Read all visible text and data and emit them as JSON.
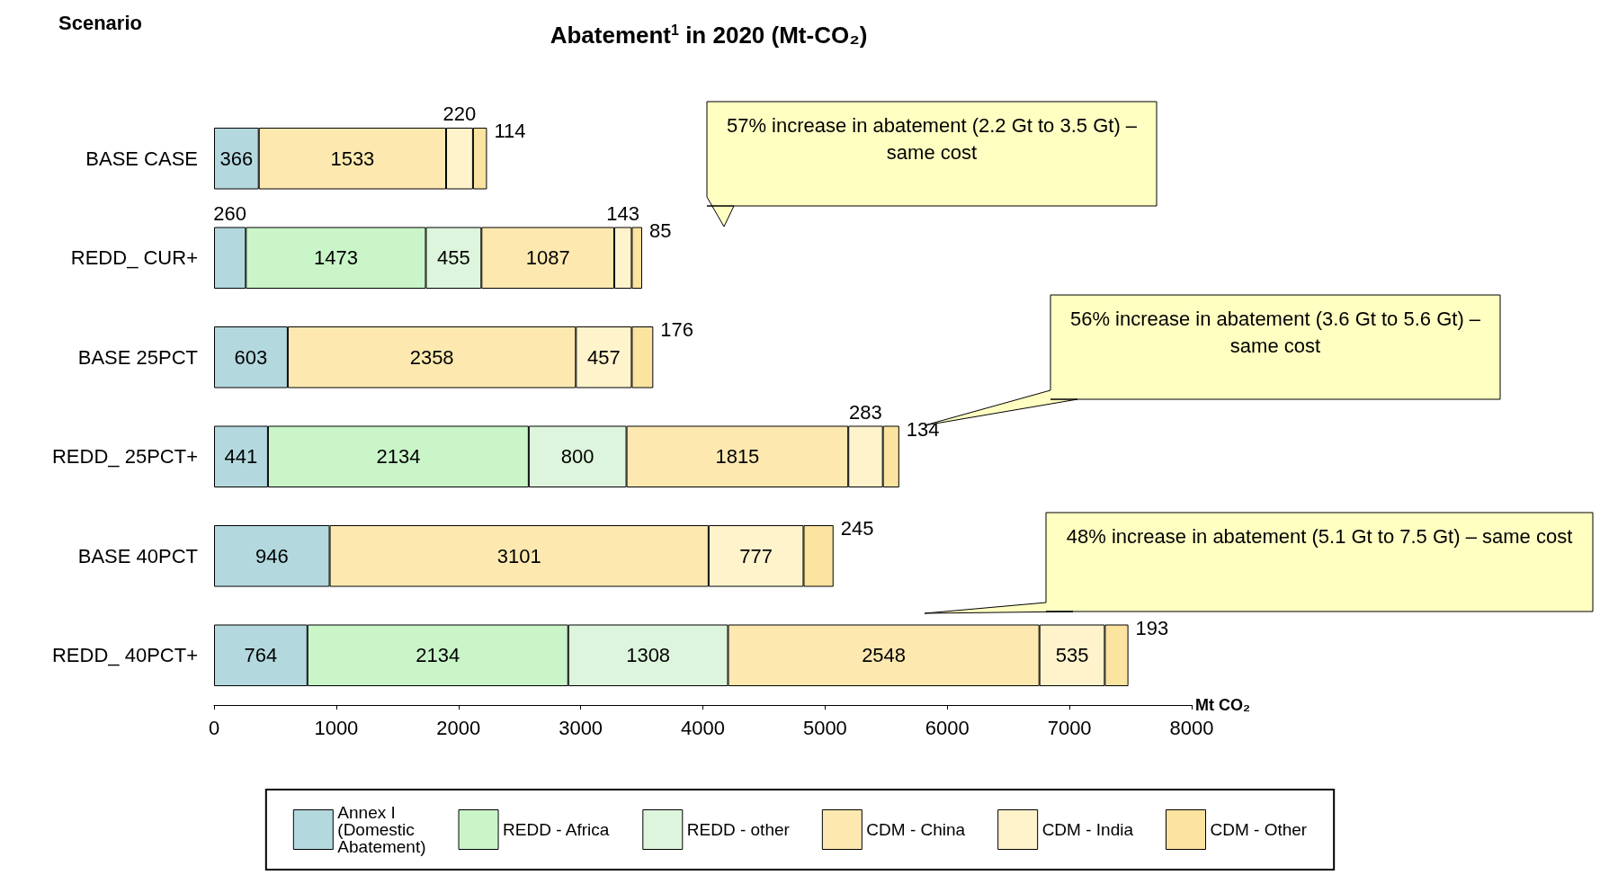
{
  "chart_data": {
    "type": "bar",
    "orientation": "horizontal",
    "stacked": true,
    "title": "Abatement$^{1}$ in 2020 (Mt-CO₂)",
    "ylabel": "Scenario",
    "xlabel": "Mt CO₂",
    "categories": [
      "BASE CASE",
      "REDD_ CUR+",
      "BASE 25PCT",
      "REDD_ 25PCT+",
      "BASE 40PCT",
      "REDD_ 40PCT+"
    ],
    "series": [
      {
        "name": "Annex I (Domestic Abatement)",
        "color": "#b3d9df",
        "values": [
          366,
          260,
          603,
          441,
          946,
          764
        ]
      },
      {
        "name": "REDD - Africa",
        "color": "#c9f5c9",
        "values": [
          null,
          1473,
          null,
          2134,
          null,
          2134
        ]
      },
      {
        "name": "REDD - other",
        "color": "#dcf5dc",
        "values": [
          null,
          455,
          null,
          800,
          null,
          1308
        ]
      },
      {
        "name": "CDM - China",
        "color": "#fde9b0",
        "values": [
          1533,
          1087,
          2358,
          1815,
          3101,
          2548
        ]
      },
      {
        "name": "CDM - India",
        "color": "#fff3cc",
        "values": [
          220,
          143,
          457,
          283,
          777,
          535
        ]
      },
      {
        "name": "CDM - Other",
        "color": "#fbe3a0",
        "values": [
          114,
          85,
          176,
          134,
          245,
          193
        ]
      }
    ],
    "xlim": [
      0,
      8000
    ],
    "xticks": [
      0,
      1000,
      2000,
      3000,
      4000,
      5000,
      6000,
      7000,
      8000
    ],
    "grid": false,
    "legend": "bottom",
    "data_labels": true,
    "annotations": [
      "57% increase in abatement (2.2 Gt to 3.5 Gt) – same cost",
      "56% increase in abatement (3.6 Gt to 5.6 Gt) – same cost",
      "48% increase in abatement (5.1 Gt to 7.5 Gt) – same cost"
    ]
  }
}
